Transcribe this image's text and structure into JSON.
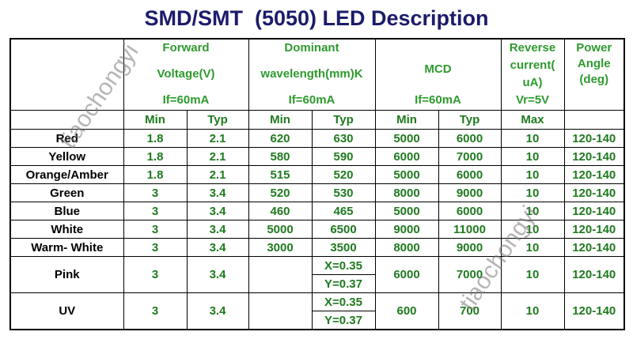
{
  "title": "SMD/SMT  (5050) LED Description",
  "table": {
    "header": [
      null,
      [
        "Forward",
        "Voltage(V)",
        "If=60mA"
      ],
      [
        "Dominant",
        "wavelength(mm)K",
        "If=60mA"
      ],
      [
        "MCD",
        "If=60mA"
      ],
      [
        "Reverse",
        "current(",
        "uA)",
        "Vr=5V"
      ],
      [
        "Power",
        "Angle",
        "(deg)"
      ]
    ],
    "subheader": [
      null,
      "Min",
      "Typ",
      "Min",
      "Typ",
      "Min",
      "Typ",
      "Max",
      null
    ],
    "rows": [
      [
        "Red",
        "1.8",
        "2.1",
        "620",
        "630",
        "5000",
        "6000",
        "10",
        "120-140"
      ],
      [
        "Yellow",
        "1.8",
        "2.1",
        "580",
        "590",
        "6000",
        "7000",
        "10",
        "120-140"
      ],
      [
        "Orange/Amber",
        "1.8",
        "2.1",
        "515",
        "520",
        "5000",
        "6000",
        "10",
        "120-140"
      ],
      [
        "Green",
        "3",
        "3.4",
        "520",
        "530",
        "8000",
        "9000",
        "10",
        "120-140"
      ],
      [
        "Blue",
        "3",
        "3.4",
        "460",
        "465",
        "5000",
        "6000",
        "10",
        "120-140"
      ],
      [
        "White",
        "3",
        "3.4",
        "5000",
        "6500",
        "9000",
        "11000",
        "10",
        "120-140"
      ],
      [
        "Warm- White",
        "3",
        "3.4",
        "3000",
        "3500",
        "8000",
        "9000",
        "10",
        "120-140"
      ],
      [
        "Pink",
        "3",
        "3.4",
        null,
        [
          "X=0.35",
          "Y=0.37"
        ],
        "6000",
        "7000",
        "10",
        "120-140"
      ],
      [
        "UV",
        "3",
        "3.4",
        null,
        [
          "X=0.35",
          "Y=0.37"
        ],
        "600",
        "700",
        "10",
        "120-140"
      ]
    ]
  },
  "watermarks": [
    "tiaochongyi",
    "tiaochongyi"
  ]
}
